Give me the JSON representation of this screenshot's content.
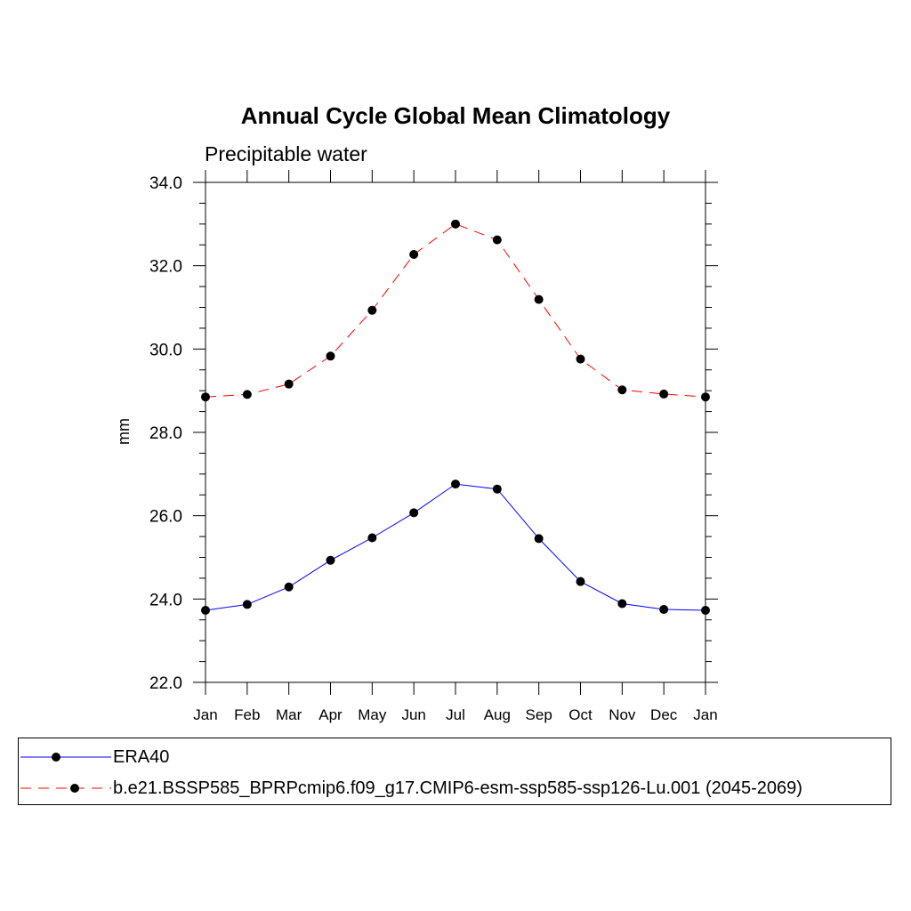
{
  "chart_data": {
    "type": "line",
    "title": "Annual Cycle Global Mean Climatology",
    "subtitle": "Precipitable water",
    "xlabel": "",
    "ylabel": "mm",
    "categories": [
      "Jan",
      "Feb",
      "Mar",
      "Apr",
      "May",
      "Jun",
      "Jul",
      "Aug",
      "Sep",
      "Oct",
      "Nov",
      "Dec",
      "Jan"
    ],
    "ylim": [
      22.0,
      34.0
    ],
    "yticks": [
      "22.0",
      "24.0",
      "26.0",
      "28.0",
      "30.0",
      "32.0",
      "34.0"
    ],
    "grid": false,
    "legend_position": "bottom",
    "series": [
      {
        "name": "ERA40",
        "line_style": "solid",
        "color": "#0000ff",
        "marker_color": "#000000",
        "values": [
          23.73,
          23.87,
          24.29,
          24.93,
          25.47,
          26.07,
          26.76,
          26.64,
          25.45,
          24.42,
          23.89,
          23.75,
          23.73
        ]
      },
      {
        "name": "b.e21.BSSP585_BPRPcmip6.f09_g17.CMIP6-esm-ssp585-ssp126-Lu.001 (2045-2069)",
        "line_style": "dashed",
        "color": "#ff0000",
        "marker_color": "#000000",
        "values": [
          28.85,
          28.91,
          29.16,
          29.83,
          30.93,
          32.27,
          33.0,
          32.62,
          31.19,
          29.76,
          29.02,
          28.92,
          28.85
        ]
      }
    ]
  }
}
